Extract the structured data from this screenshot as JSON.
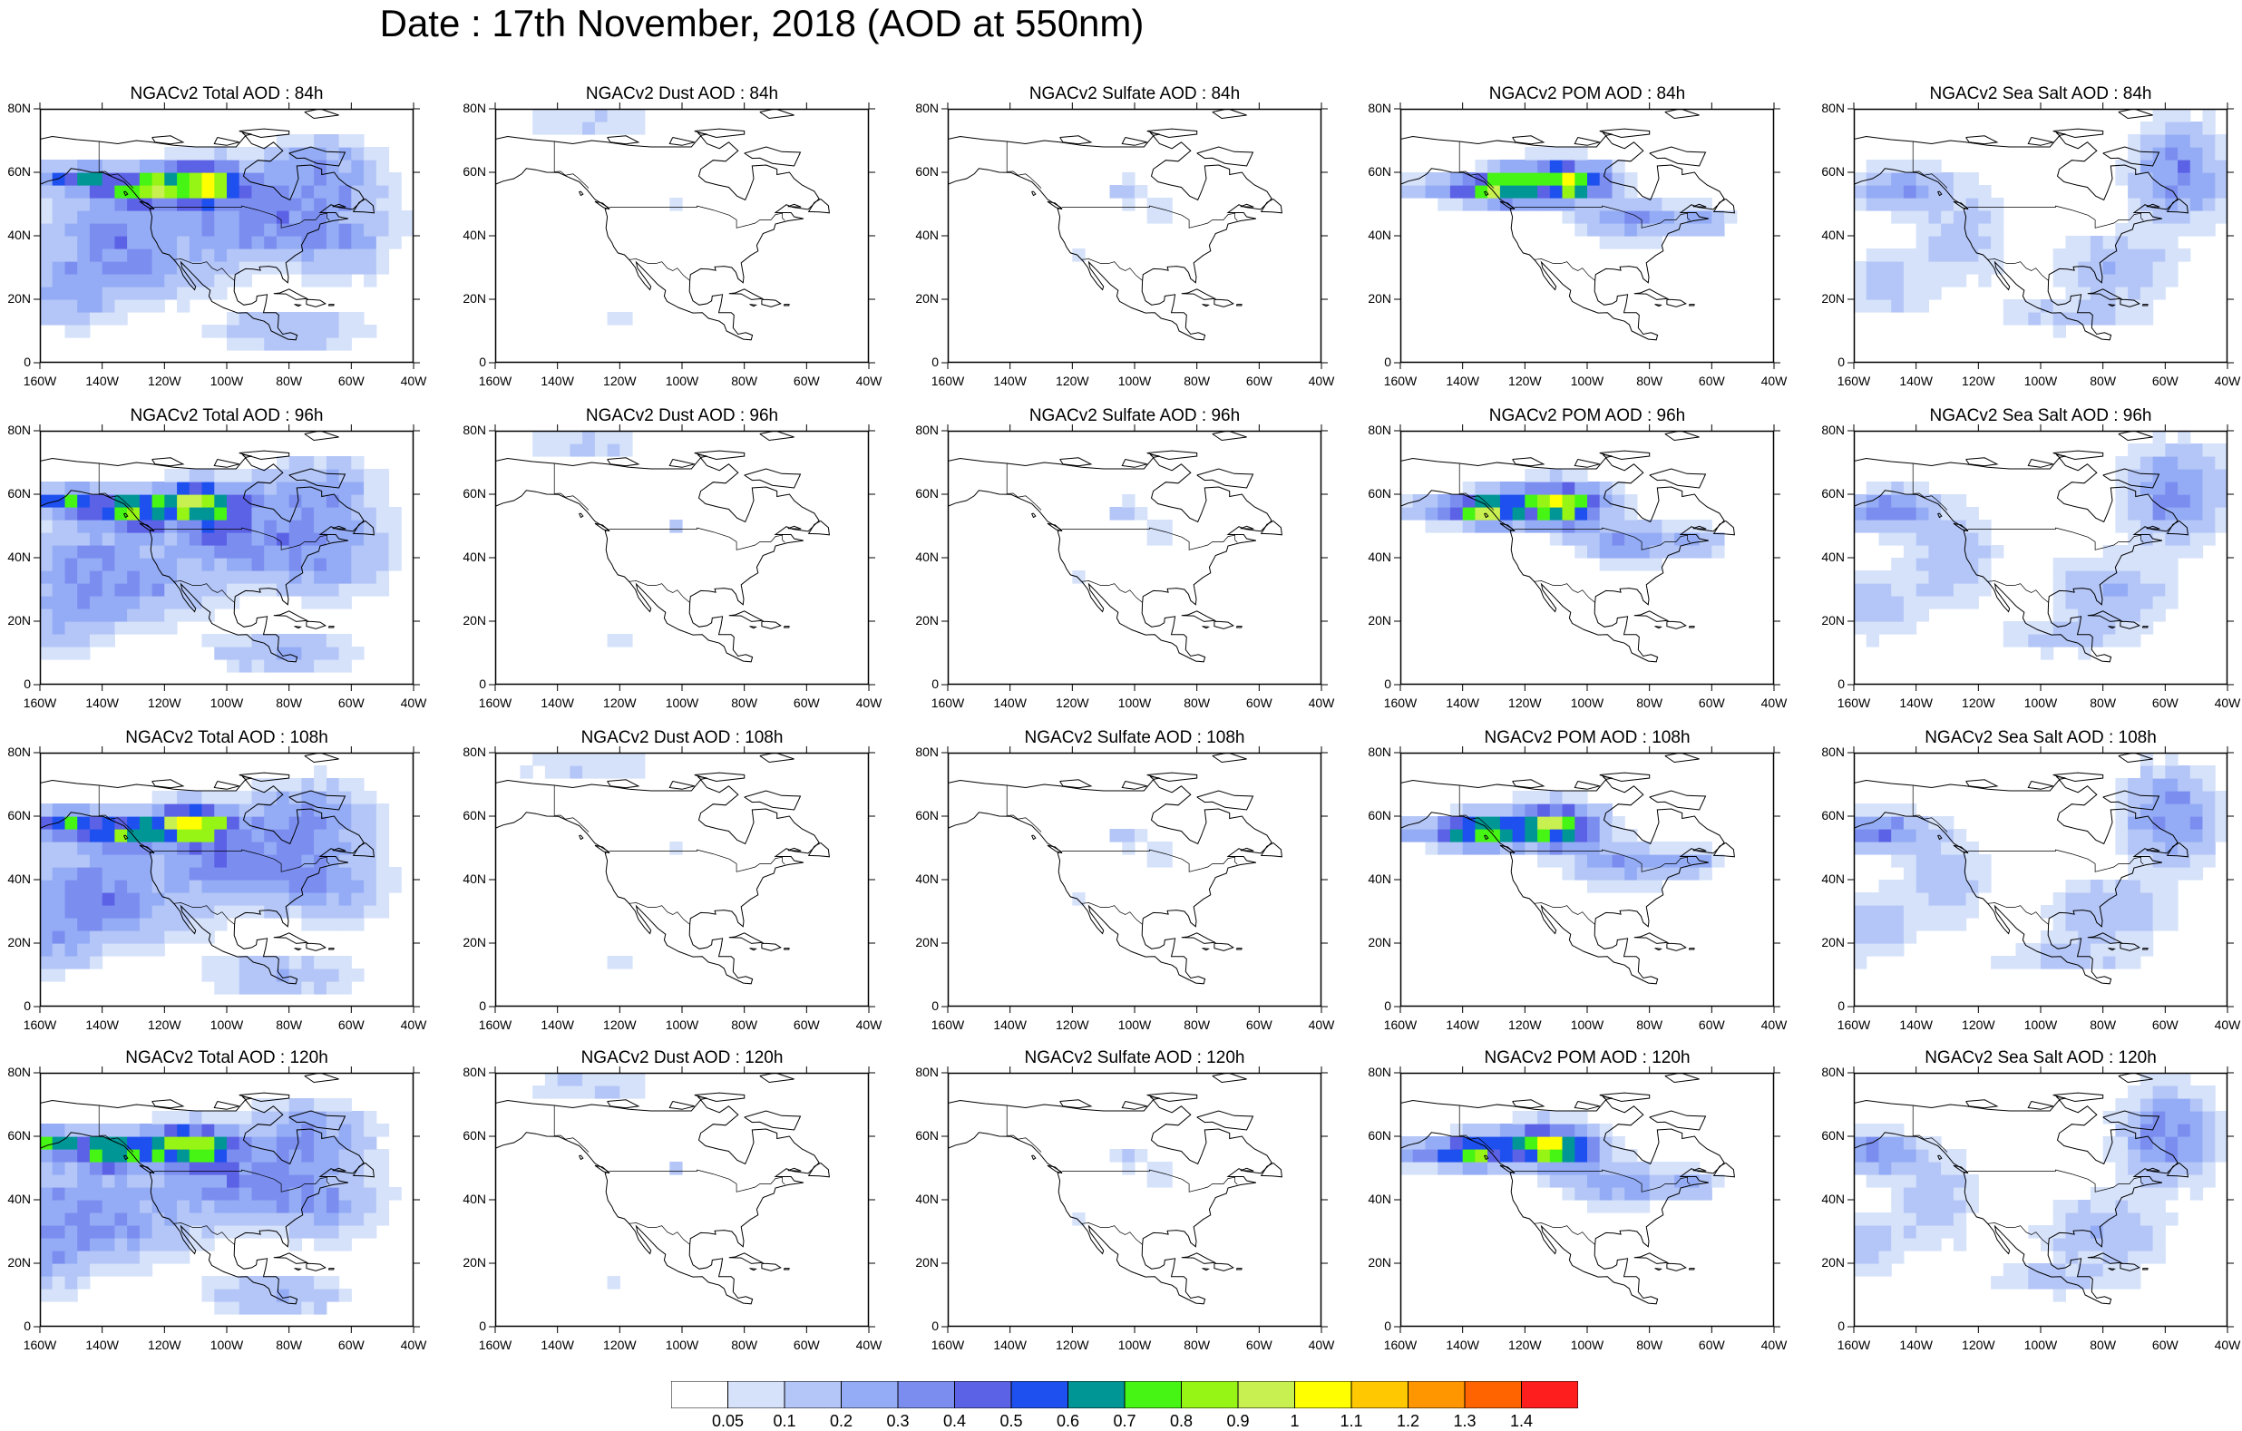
{
  "title": "Date : 17th November, 2018 (AOD at 550nm)",
  "species": [
    {
      "key": "total",
      "label": "NGACv2 Total AOD"
    },
    {
      "key": "dust",
      "label": "NGACv2 Dust AOD"
    },
    {
      "key": "sulfate",
      "label": "NGACv2 Sulfate AOD"
    },
    {
      "key": "pom",
      "label": "NGACv2 POM AOD"
    },
    {
      "key": "seasalt",
      "label": "NGACv2 Sea Salt AOD"
    }
  ],
  "forecast_hours": [
    "84h",
    "96h",
    "108h",
    "120h"
  ],
  "panel_titles": [
    [
      "NGACv2 Total AOD : 84h",
      "NGACv2 Dust AOD : 84h",
      "NGACv2 Sulfate AOD : 84h",
      "NGACv2 POM AOD : 84h",
      "NGACv2 Sea Salt AOD : 84h"
    ],
    [
      "NGACv2 Total AOD : 96h",
      "NGACv2 Dust AOD : 96h",
      "NGACv2 Sulfate AOD : 96h",
      "NGACv2 POM AOD : 96h",
      "NGACv2 Sea Salt AOD : 96h"
    ],
    [
      "NGACv2 Total AOD : 108h",
      "NGACv2 Dust AOD : 108h",
      "NGACv2 Sulfate AOD : 108h",
      "NGACv2 POM AOD : 108h",
      "NGACv2 Sea Salt AOD : 108h"
    ],
    [
      "NGACv2 Total AOD : 120h",
      "NGACv2 Dust AOD : 120h",
      "NGACv2 Sulfate AOD : 120h",
      "NGACv2 POM AOD : 120h",
      "NGACv2 Sea Salt  AOD : 120h"
    ]
  ],
  "x_ticks": [
    "160W",
    "140W",
    "120W",
    "100W",
    "80W",
    "60W",
    "40W"
  ],
  "y_ticks": [
    "0",
    "20N",
    "40N",
    "60N",
    "80N"
  ],
  "lon_range": [
    -160,
    -40
  ],
  "lat_range": [
    0,
    80
  ],
  "colorbar": {
    "levels": [
      "0.05",
      "0.1",
      "0.2",
      "0.3",
      "0.4",
      "0.5",
      "0.6",
      "0.7",
      "0.8",
      "0.9",
      "1",
      "1.1",
      "1.2",
      "1.3",
      "1.4"
    ],
    "colors": [
      "#ffffff",
      "#d6e2fa",
      "#b4c6f7",
      "#94acf5",
      "#7b8ef0",
      "#5c62e6",
      "#1e50f0",
      "#009696",
      "#46f514",
      "#96f514",
      "#c8f050",
      "#ffff00",
      "#ffc800",
      "#ff9600",
      "#ff6400",
      "#ff1e1e"
    ]
  }
}
